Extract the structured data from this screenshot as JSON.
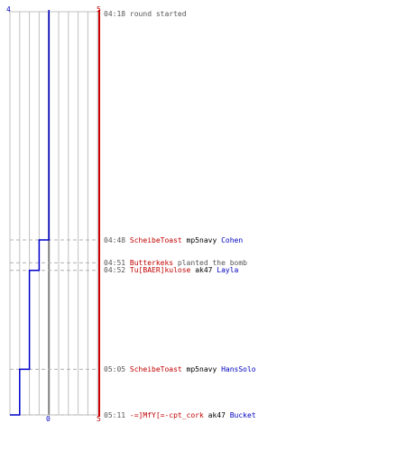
{
  "header": {
    "left_score": "4",
    "right_score": "5"
  },
  "footer": {
    "left_score": "0",
    "right_score": "5"
  },
  "colors": {
    "team_red": "#cc0000",
    "team_blue": "#0000cc",
    "grid": "#c0c0c0",
    "center_line": "#808080",
    "guide": "#b0b0b0"
  },
  "chart_data": {
    "type": "line",
    "x_unit": "time (mm:ss)",
    "series": [
      {
        "color": "#0000cc",
        "step_points": [
          {
            "time": "04:18",
            "value": 4
          },
          {
            "time": "04:48",
            "value": 3
          },
          {
            "time": "04:52",
            "value": 2
          },
          {
            "time": "05:05",
            "value": 1
          },
          {
            "time": "05:11",
            "value": 0
          }
        ]
      },
      {
        "color": "#cc0000",
        "step_points": [
          {
            "time": "04:18",
            "value": 5
          },
          {
            "time": "05:11",
            "value": 5
          }
        ]
      }
    ],
    "value_range": [
      0,
      9
    ]
  },
  "events": [
    {
      "time": "04:18",
      "parts": [
        {
          "text": "round started",
          "color": "gray"
        }
      ]
    },
    {
      "time": "04:48",
      "parts": [
        {
          "text": "ScheibeToast",
          "color": "red"
        },
        {
          "text": "mp5navy",
          "color": "black"
        },
        {
          "text": "Cohen",
          "color": "blue"
        }
      ]
    },
    {
      "time": "04:51",
      "parts": [
        {
          "text": "Butterkeks",
          "color": "red"
        },
        {
          "text": "planted the bomb",
          "color": "gray"
        }
      ]
    },
    {
      "time": "04:52",
      "parts": [
        {
          "text": "Tu[BAER]kulose",
          "color": "red"
        },
        {
          "text": "ak47",
          "color": "black"
        },
        {
          "text": "Layla",
          "color": "blue"
        }
      ]
    },
    {
      "time": "05:05",
      "parts": [
        {
          "text": "ScheibeToast",
          "color": "red"
        },
        {
          "text": "mp5navy",
          "color": "black"
        },
        {
          "text": "HansSolo",
          "color": "blue"
        }
      ]
    },
    {
      "time": "05:11",
      "parts": [
        {
          "text": "-=]MfY[=-cpt_cork",
          "color": "red"
        },
        {
          "text": "ak47",
          "color": "black"
        },
        {
          "text": "Bucket",
          "color": "blue"
        }
      ]
    }
  ]
}
